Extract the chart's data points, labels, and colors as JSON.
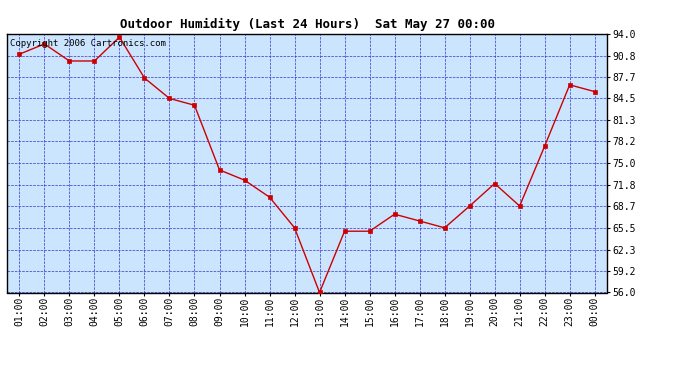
{
  "title": "Outdoor Humidity (Last 24 Hours)  Sat May 27 00:00",
  "x_labels": [
    "01:00",
    "02:00",
    "03:00",
    "04:00",
    "05:00",
    "06:00",
    "07:00",
    "08:00",
    "09:00",
    "10:00",
    "11:00",
    "12:00",
    "13:00",
    "14:00",
    "15:00",
    "16:00",
    "17:00",
    "18:00",
    "19:00",
    "20:00",
    "21:00",
    "22:00",
    "23:00",
    "00:00"
  ],
  "y_values": [
    91.0,
    92.5,
    90.0,
    90.0,
    93.5,
    87.5,
    84.5,
    83.5,
    74.0,
    72.5,
    70.0,
    65.5,
    56.0,
    65.0,
    65.0,
    67.5,
    66.5,
    65.5,
    68.7,
    72.0,
    68.7,
    77.5,
    86.5,
    85.5
  ],
  "y_min": 56.0,
  "y_max": 94.0,
  "y_ticks": [
    56.0,
    59.2,
    62.3,
    65.5,
    68.7,
    71.8,
    75.0,
    78.2,
    81.3,
    84.5,
    87.7,
    90.8,
    94.0
  ],
  "line_color": "#cc0000",
  "marker_color": "#cc0000",
  "bg_color": "#cce5ff",
  "grid_color": "#3333cc",
  "border_color": "#000000",
  "title_color": "#000000",
  "copyright_text": "Copyright 2006 Cartronics.com",
  "copyright_color": "#000000",
  "copyright_fontsize": 6.5,
  "title_fontsize": 9,
  "tick_fontsize": 7
}
